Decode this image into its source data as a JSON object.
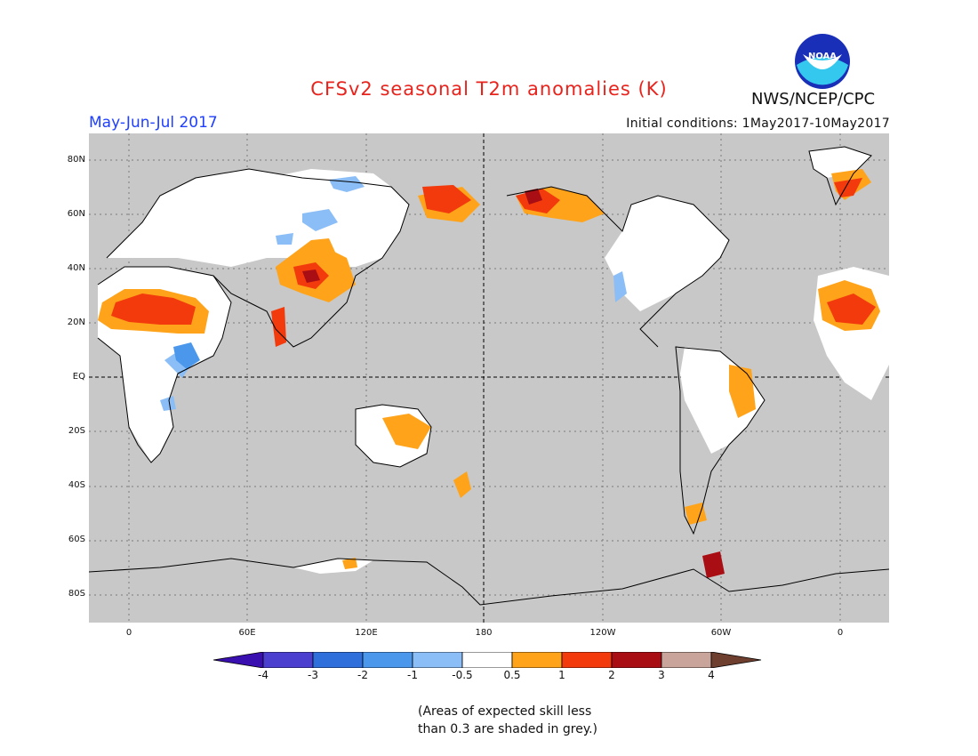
{
  "title": "CFSv2 seasonal T2m anomalies (K)",
  "season": "May-Jun-Jul 2017",
  "initial_conditions": "Initial conditions: 1May2017-10May2017",
  "agency": "NWS/NCEP/CPC",
  "logo_text": "NOAA",
  "map": {
    "lat_labels": [
      "80N",
      "60N",
      "40N",
      "20N",
      "EQ",
      "20S",
      "40S",
      "60S",
      "80S"
    ],
    "lon_labels": [
      "0",
      "60E",
      "120E",
      "180",
      "120W",
      "60W",
      "0"
    ]
  },
  "legend": {
    "labels": [
      "-4",
      "-3",
      "-2",
      "-1",
      "-0.5",
      "0.5",
      "1",
      "2",
      "3",
      "4"
    ],
    "colors": [
      "#3a0fb0",
      "#4b3fd0",
      "#2e6fdc",
      "#4a97ec",
      "#8bbef6",
      "#ffffff",
      "#ffa31a",
      "#f23a0c",
      "#a80e14",
      "#c9a49a",
      "#6e3e2e"
    ]
  },
  "note": {
    "line1": "(Areas of expected skill less",
    "line2": "than 0.3 are shaded in grey.)"
  },
  "colors": {
    "grey_mask": "#c8c8c8",
    "title": "#e8231c",
    "season": "#1f3fff"
  }
}
